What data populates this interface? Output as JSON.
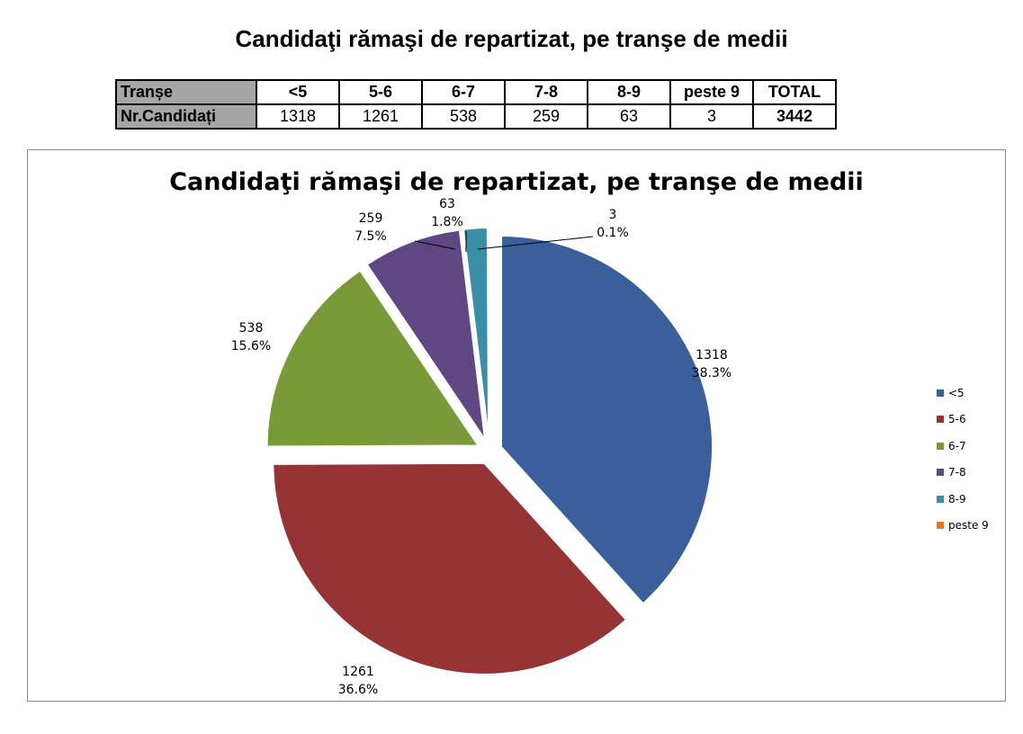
{
  "document_title": "Candidaţi rămaşi de repartizat, pe tranşe de medii",
  "table": {
    "header_label": "Tranșe",
    "row_label": "Nr.Candidați",
    "columns": [
      "<5",
      "5-6",
      "6-7",
      "7-8",
      "8-9",
      "peste 9",
      "TOTAL"
    ],
    "counts": [
      "1318",
      "1261",
      "538",
      "259",
      "63",
      "3",
      "3442"
    ]
  },
  "chart_data": {
    "type": "pie",
    "title": "Candidaţi rămaşi de repartizat, pe tranşe de medii",
    "categories": [
      "<5",
      "5-6",
      "6-7",
      "7-8",
      "8-9",
      "peste 9"
    ],
    "values": [
      1318,
      1261,
      538,
      259,
      63,
      3
    ],
    "labels": [
      "1318",
      "1261",
      "538",
      "259",
      "63",
      "3"
    ],
    "percent_labels": [
      "38.3%",
      "36.6%",
      "15.6%",
      "7.5%",
      "1.8%",
      "0.1%"
    ],
    "colors": [
      "#3a5f9a",
      "#963335",
      "#7a9a3a",
      "#5e4782",
      "#3a8ea6",
      "#e07b2a"
    ],
    "legend_position": "right",
    "exploded": true
  }
}
